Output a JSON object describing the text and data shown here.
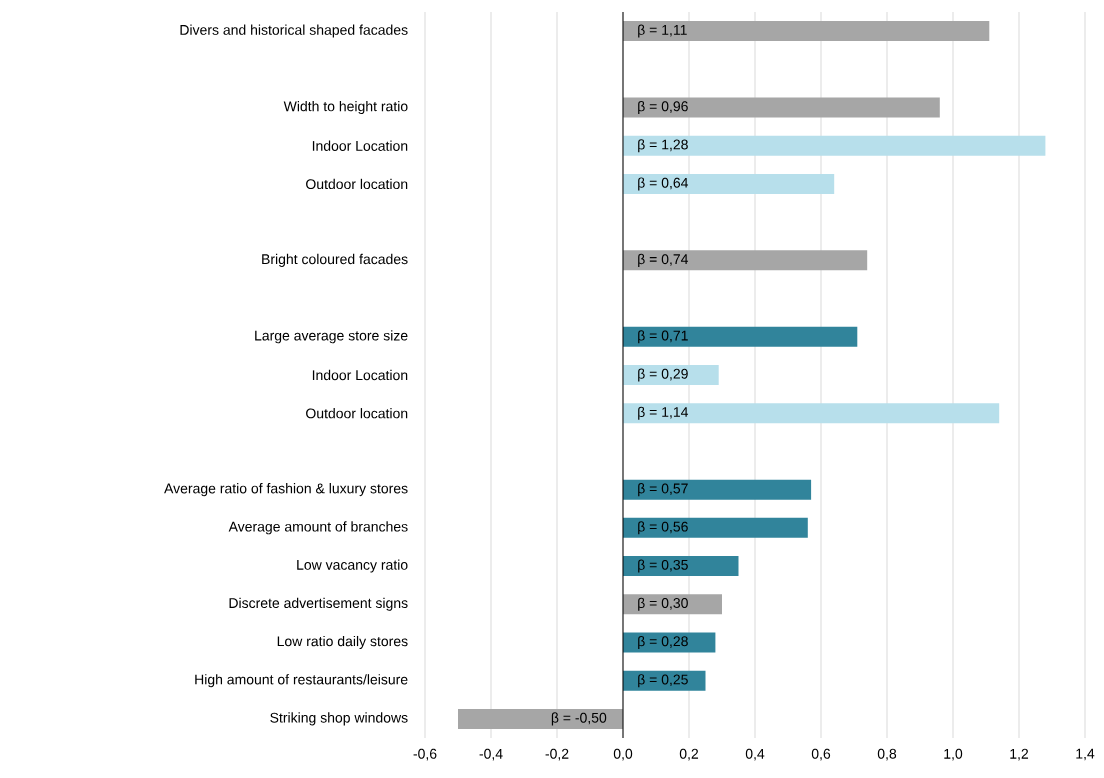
{
  "chart_data": {
    "type": "bar",
    "orientation": "horizontal",
    "categories": [
      "Divers and historical shaped facades",
      null,
      "Width to height ratio",
      "Indoor Location",
      "Outdoor location",
      null,
      "Bright coloured facades",
      null,
      "Large average store size",
      "Indoor Location",
      "Outdoor location",
      null,
      "Average ratio of fashion & luxury stores",
      "Average amount of branches",
      "Low vacancy ratio",
      "Discrete advertisement signs",
      "Low ratio daily stores",
      "High amount of restaurants/leisure",
      "Striking shop windows"
    ],
    "values": [
      1.11,
      null,
      0.96,
      1.28,
      0.64,
      null,
      0.74,
      null,
      0.71,
      0.29,
      1.14,
      null,
      0.57,
      0.56,
      0.35,
      0.3,
      0.28,
      0.25,
      -0.5
    ],
    "colors": [
      "#a6a6a6",
      null,
      "#a6a6a6",
      "#b7dfeb",
      "#b7dfeb",
      null,
      "#a6a6a6",
      null,
      "#31849b",
      "#b7dfeb",
      "#b7dfeb",
      null,
      "#31849b",
      "#31849b",
      "#31849b",
      "#a6a6a6",
      "#31849b",
      "#31849b",
      "#a6a6a6"
    ],
    "value_labels": [
      "β = 1,11",
      null,
      "β = 0,96",
      "β = 1,28",
      "β = 0,64",
      null,
      "β = 0,74",
      null,
      "β = 0,71",
      "β = 0,29",
      "β = 1,14",
      null,
      "β = 0,57",
      "β = 0,56",
      "β = 0,35",
      "β = 0,30",
      "β = 0,28",
      "β = 0,25",
      "β = -0,50"
    ],
    "xlim": [
      -0.6,
      1.4
    ],
    "xticks": [
      {
        "value": -0.6,
        "label": "-0,6"
      },
      {
        "value": -0.4,
        "label": "-0,4"
      },
      {
        "value": -0.2,
        "label": "-0,2"
      },
      {
        "value": 0,
        "label": "0,0"
      },
      {
        "value": 0.2,
        "label": "0,2"
      },
      {
        "value": 0.4,
        "label": "0,4"
      },
      {
        "value": 0.6,
        "label": "0,6"
      },
      {
        "value": 0.8,
        "label": "0,8"
      },
      {
        "value": 1.0,
        "label": "1,0"
      },
      {
        "value": 1.2,
        "label": "1,2"
      },
      {
        "value": 1.4,
        "label": "1,4"
      }
    ],
    "grid": "x"
  }
}
